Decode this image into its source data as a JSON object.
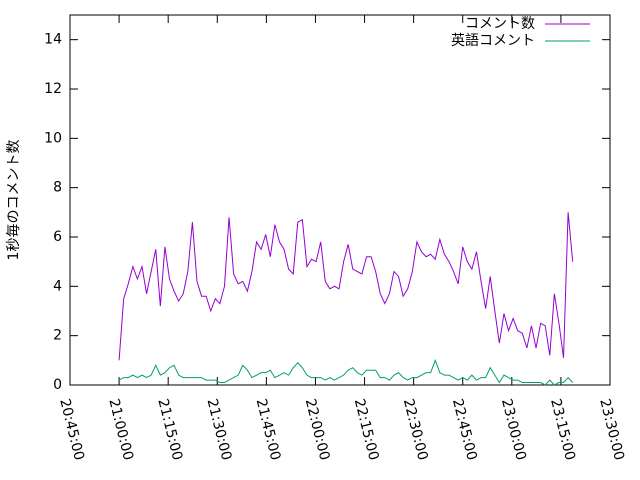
{
  "chart_data": {
    "type": "line",
    "ylabel": "1秒毎のコメント数",
    "xlim": [
      "20:45:00",
      "23:30:00"
    ],
    "xticks": [
      "20:45:00",
      "21:00:00",
      "21:15:00",
      "21:30:00",
      "21:45:00",
      "22:00:00",
      "22:15:00",
      "22:30:00",
      "22:45:00",
      "23:00:00",
      "23:15:00",
      "23:30:00"
    ],
    "ylim": [
      0,
      15
    ],
    "yticks": [
      0,
      2,
      4,
      6,
      8,
      10,
      12,
      14
    ],
    "legend": "upper right",
    "x": [
      "21:00:00",
      "21:01:24",
      "21:02:48",
      "21:04:12",
      "21:05:36",
      "21:07:00",
      "21:08:24",
      "21:09:48",
      "21:11:12",
      "21:12:36",
      "21:14:00",
      "21:15:24",
      "21:16:48",
      "21:18:12",
      "21:19:36",
      "21:21:00",
      "21:22:24",
      "21:23:48",
      "21:25:12",
      "21:26:36",
      "21:28:00",
      "21:29:24",
      "21:30:48",
      "21:32:12",
      "21:33:36",
      "21:35:00",
      "21:36:24",
      "21:37:48",
      "21:39:12",
      "21:40:36",
      "21:42:00",
      "21:43:24",
      "21:44:48",
      "21:46:12",
      "21:47:36",
      "21:49:00",
      "21:50:24",
      "21:51:48",
      "21:53:12",
      "21:54:36",
      "21:56:00",
      "21:57:24",
      "21:58:48",
      "22:00:12",
      "22:01:36",
      "22:03:00",
      "22:04:24",
      "22:05:48",
      "22:07:12",
      "22:08:36",
      "22:10:00",
      "22:11:24",
      "22:12:48",
      "22:14:12",
      "22:15:36",
      "22:17:00",
      "22:18:24",
      "22:19:48",
      "22:21:12",
      "22:22:36",
      "22:24:00",
      "22:25:24",
      "22:26:48",
      "22:28:12",
      "22:29:36",
      "22:31:00",
      "22:32:24",
      "22:33:48",
      "22:35:12",
      "22:36:36",
      "22:38:00",
      "22:39:24",
      "22:40:48",
      "22:42:12",
      "22:43:36",
      "22:45:00",
      "22:46:24",
      "22:47:48",
      "22:49:12",
      "22:50:36",
      "22:52:00",
      "22:53:24",
      "22:54:48",
      "22:56:12",
      "22:57:36",
      "22:59:00",
      "23:00:24",
      "23:01:48",
      "23:03:12",
      "23:04:36",
      "23:06:00",
      "23:07:24",
      "23:08:48",
      "23:10:12",
      "23:11:36",
      "23:13:00",
      "23:14:24",
      "23:15:48",
      "23:17:12",
      "23:18:36"
    ],
    "series": [
      {
        "name": "コメント数",
        "color": "#9400d3",
        "values": [
          1.0,
          3.5,
          4.1,
          4.8,
          4.3,
          4.8,
          3.7,
          4.6,
          5.5,
          3.2,
          5.6,
          4.3,
          3.8,
          3.4,
          3.7,
          4.6,
          6.6,
          4.2,
          3.6,
          3.6,
          3.0,
          3.5,
          3.3,
          4.0,
          6.8,
          4.5,
          4.1,
          4.2,
          3.8,
          4.6,
          5.8,
          5.5,
          6.1,
          5.2,
          6.5,
          5.8,
          5.5,
          4.7,
          4.5,
          6.6,
          6.7,
          4.8,
          5.1,
          5.0,
          5.8,
          4.2,
          3.9,
          4.0,
          3.9,
          5.0,
          5.7,
          4.7,
          4.6,
          4.5,
          5.2,
          5.2,
          4.6,
          3.7,
          3.3,
          3.7,
          4.6,
          4.4,
          3.6,
          3.9,
          4.6,
          5.8,
          5.4,
          5.2,
          5.3,
          5.1,
          5.9,
          5.3,
          5.0,
          4.6,
          4.1,
          5.6,
          5.0,
          4.7,
          5.4,
          4.2,
          3.1,
          4.4,
          3.0,
          1.7,
          2.9,
          2.2,
          2.7,
          2.2,
          2.1,
          1.5,
          2.4,
          1.5,
          2.5,
          2.4,
          1.2,
          3.7,
          2.5,
          1.1,
          7.0,
          5.0
        ]
      },
      {
        "name": "英語コメント",
        "color": "#009e73",
        "values": [
          0.2,
          0.3,
          0.3,
          0.4,
          0.3,
          0.4,
          0.3,
          0.4,
          0.8,
          0.4,
          0.5,
          0.7,
          0.8,
          0.4,
          0.3,
          0.3,
          0.3,
          0.3,
          0.3,
          0.2,
          0.2,
          0.2,
          0.1,
          0.1,
          0.2,
          0.3,
          0.4,
          0.8,
          0.6,
          0.3,
          0.4,
          0.5,
          0.5,
          0.6,
          0.3,
          0.4,
          0.5,
          0.4,
          0.7,
          0.9,
          0.7,
          0.4,
          0.3,
          0.3,
          0.3,
          0.2,
          0.3,
          0.2,
          0.3,
          0.4,
          0.6,
          0.7,
          0.5,
          0.4,
          0.6,
          0.6,
          0.6,
          0.3,
          0.3,
          0.2,
          0.4,
          0.5,
          0.3,
          0.2,
          0.3,
          0.3,
          0.4,
          0.5,
          0.5,
          1.0,
          0.5,
          0.4,
          0.4,
          0.3,
          0.2,
          0.3,
          0.2,
          0.4,
          0.2,
          0.3,
          0.3,
          0.7,
          0.4,
          0.1,
          0.4,
          0.3,
          0.2,
          0.2,
          0.1,
          0.1,
          0.1,
          0.1,
          0.1,
          0.0,
          0.2,
          0.0,
          0.1,
          0.1,
          0.3,
          0.1
        ]
      }
    ]
  }
}
